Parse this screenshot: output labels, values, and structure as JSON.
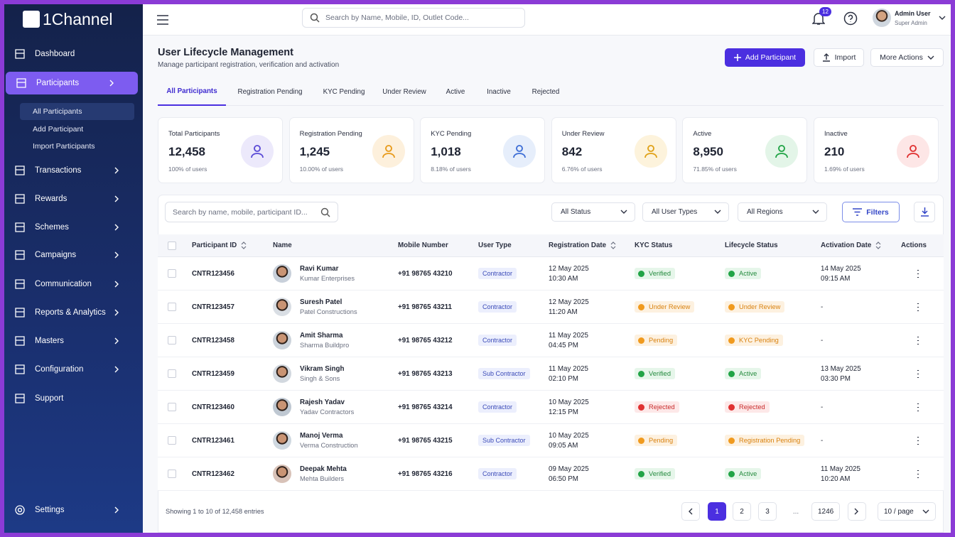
{
  "brand": "1Channel",
  "nav": {
    "items": [
      "Dashboard",
      "Participants",
      "Transactions",
      "Rewards",
      "Schemes",
      "Campaigns",
      "Communication",
      "Reports & Analytics",
      "Masters",
      "Configuration",
      "Support"
    ],
    "sub": [
      "All Participants",
      "Add Participant",
      "Import Participants"
    ],
    "settings": "Settings"
  },
  "topbar": {
    "search": "Search by Name, Mobile, ID, Outlet Code...",
    "notifications": 12,
    "user": "Admin User",
    "role": "Super Admin"
  },
  "header": {
    "title": "User Lifecycle Management",
    "subtitle": "Manage participant registration, verification and activation",
    "buttons": [
      "Add Participant",
      "Import",
      "More Actions"
    ]
  },
  "tabs": [
    "All Participants",
    "Registration Pending",
    "KYC Pending",
    "Under Review",
    "Active",
    "Inactive",
    "Rejected"
  ],
  "stats": [
    {
      "label": "Total Participants",
      "value": "12,458",
      "note": "100% of users"
    },
    {
      "label": "Registration Pending",
      "value": "1,245",
      "note": "10.00% of users"
    },
    {
      "label": "KYC Pending",
      "value": "1,018",
      "note": "8.18% of users"
    },
    {
      "label": "Under Review",
      "value": "842",
      "note": "6.76% of users"
    },
    {
      "label": "Active",
      "value": "8,950",
      "note": "71.85% of users"
    },
    {
      "label": "Inactive",
      "value": "210",
      "note": "1.69% of users"
    }
  ],
  "filters": {
    "search": "Search by name, mobile, participant ID...",
    "selects": [
      "All Status",
      "All User Types",
      "All Regions"
    ],
    "button": "Filters"
  },
  "table": {
    "columns": [
      "Participant ID",
      "Name",
      "Mobile Number",
      "User Type",
      "Registration Date",
      "KYC Status",
      "Lifecycle Status",
      "Activation Date",
      "Actions"
    ],
    "rows": [
      [
        "CNTR123456",
        "Ravi Kumar",
        "Kumar Enterprises",
        "+91 98765 43210",
        "Contractor",
        "12 May 2025",
        "10:30 AM",
        "Verified",
        "Active",
        "14 May 2025",
        "09:15 AM"
      ],
      [
        "CNTR123457",
        "Suresh Patel",
        "Patel Constructions",
        "+91 98765 43211",
        "Contractor",
        "12 May 2025",
        "11:20 AM",
        "Under Review",
        "Under Review",
        "-",
        ""
      ],
      [
        "CNTR123458",
        "Amit Sharma",
        "Sharma Buildpro",
        "+91 98765 43212",
        "Contractor",
        "11 May 2025",
        "04:45 PM",
        "Pending",
        "KYC Pending",
        "-",
        ""
      ],
      [
        "CNTR123459",
        "Vikram Singh",
        "Singh & Sons",
        "+91 98765 43213",
        "Sub Contractor",
        "11 May 2025",
        "02:10 PM",
        "Verified",
        "Active",
        "13 May 2025",
        "03:30 PM"
      ],
      [
        "CNTR123460",
        "Rajesh Yadav",
        "Yadav Contractors",
        "+91 98765 43214",
        "Contractor",
        "10 May 2025",
        "12:15 PM",
        "Rejected",
        "Rejected",
        "-",
        ""
      ],
      [
        "CNTR123461",
        "Manoj Verma",
        "Verma Construction",
        "+91 98765 43215",
        "Sub Contractor",
        "10 May 2025",
        "09:05 AM",
        "Pending",
        "Registration Pending",
        "-",
        ""
      ],
      [
        "CNTR123462",
        "Deepak Mehta",
        "Mehta Builders",
        "+91 98765 43216",
        "Contractor",
        "09 May 2025",
        "06:50 PM",
        "Verified",
        "Active",
        "11 May 2025",
        "10:20 AM"
      ]
    ]
  },
  "footer": {
    "summary": "Showing 1 to 10 of 12,458 entries",
    "pages": [
      "1",
      "2",
      "3",
      "...",
      "1246"
    ],
    "per_page": "10 / page"
  }
}
